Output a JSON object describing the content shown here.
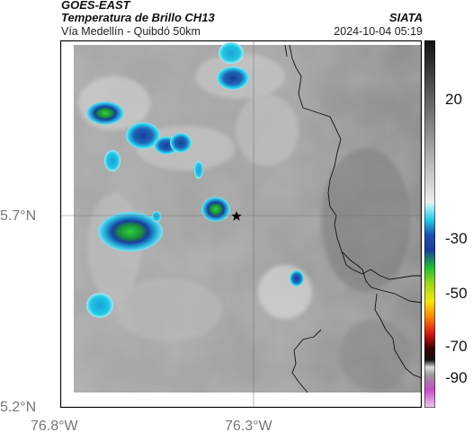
{
  "header": {
    "satellite": "GOES-EAST",
    "product": "Temperatura de Brillo CH13",
    "route": "Vía Medellín - Quibdó 50km",
    "organization": "SIATA",
    "datetime": "2024-10-04 05:19"
  },
  "map": {
    "lat_ticks": [
      "5.7°N",
      "5.2°N"
    ],
    "lon_ticks": [
      "76.8°W",
      "76.3°W"
    ],
    "marker": "star"
  },
  "colorbar": {
    "ticks": [
      "20",
      "-30",
      "-50",
      "-70",
      "-90"
    ],
    "colors": {
      "warm_gray_dark": "#2a2a2a",
      "warm_gray_light": "#e6e6e6",
      "cyan": "#1ec8e6",
      "blue": "#1a3c9c",
      "green": "#22c233",
      "yellow": "#f2e60a",
      "orange": "#ff8a00",
      "red": "#d21414",
      "black": "#111111",
      "magenta": "#c44cc4"
    }
  }
}
